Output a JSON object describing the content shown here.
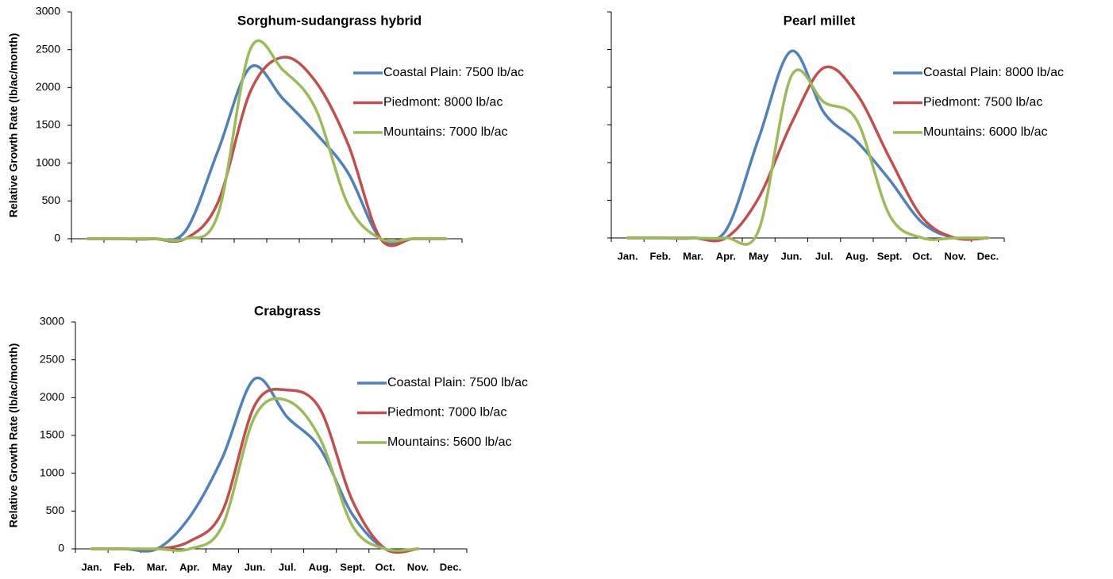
{
  "chart_data": [
    {
      "type": "line",
      "title": "Sorghum-sudangrass hybrid",
      "ylabel": "Relative Growth Rate (lb/ac/month)",
      "categories": [
        null,
        null,
        null,
        null,
        null,
        null,
        null,
        null,
        null,
        null,
        null,
        null
      ],
      "series": [
        {
          "name": "Coastal Plain: 7500 lb/ac",
          "color": "#4f81bd",
          "values": [
            0,
            0,
            0,
            100,
            1160,
            2270,
            1850,
            1400,
            870,
            0,
            0,
            0
          ]
        },
        {
          "name": "Piedmont: 8000 lb/ac",
          "color": "#c0504d",
          "values": [
            0,
            0,
            0,
            0,
            480,
            1950,
            2400,
            2080,
            1250,
            0,
            0,
            0
          ]
        },
        {
          "name": "Mountains: 7000 lb/ac",
          "color": "#9bbb59",
          "values": [
            0,
            0,
            0,
            0,
            320,
            2510,
            2230,
            1720,
            450,
            0,
            0,
            0
          ]
        }
      ],
      "ylim": [
        0,
        3000
      ],
      "yticks": [
        0,
        500,
        1000,
        1500,
        2000,
        2500,
        3000
      ],
      "ytick_labels": true
    },
    {
      "type": "line",
      "title": "Pearl millet",
      "categories": [
        "Jan.",
        "Feb.",
        "Mar.",
        "Apr.",
        "May",
        "Jun.",
        "Jul.",
        "Aug.",
        "Sept.",
        "Oct.",
        "Nov.",
        "Dec."
      ],
      "series": [
        {
          "name": "Coastal Plain: 8000 lb/ac",
          "color": "#4f81bd",
          "values": [
            0,
            0,
            0,
            100,
            1320,
            2480,
            1660,
            1280,
            770,
            200,
            0,
            0
          ]
        },
        {
          "name": "Piedmont: 7500 lb/ac",
          "color": "#c0504d",
          "values": [
            0,
            0,
            0,
            0,
            530,
            1520,
            2260,
            1910,
            1060,
            270,
            0,
            0
          ]
        },
        {
          "name": "Mountains: 6000 lb/ac",
          "color": "#9bbb59",
          "values": [
            0,
            0,
            0,
            0,
            100,
            2150,
            1800,
            1560,
            300,
            0,
            0,
            0
          ]
        }
      ],
      "ylim": [
        0,
        3000
      ],
      "yticks": [
        0,
        500,
        1000,
        1500,
        2000,
        2500,
        3000
      ],
      "ytick_labels": false
    },
    {
      "type": "line",
      "title": "Crabgrass",
      "ylabel": "Relative Growth Rate (lb/ac/month)",
      "categories": [
        "Jan.",
        "Feb.",
        "Mar.",
        "Apr.",
        "May",
        "Jun.",
        "Jul.",
        "Aug.",
        "Sept.",
        "Oct.",
        "Nov.",
        "Dec."
      ],
      "series": [
        {
          "name": "Coastal Plain: 7500 lb/ac",
          "color": "#4f81bd",
          "values": [
            0,
            0,
            0,
            420,
            1200,
            2250,
            1740,
            1330,
            450,
            0,
            0,
            null
          ]
        },
        {
          "name": "Piedmont: 7000 lb/ac",
          "color": "#c0504d",
          "values": [
            0,
            0,
            0,
            100,
            490,
            1900,
            2100,
            1850,
            630,
            0,
            0,
            null
          ]
        },
        {
          "name": "Mountains: 5600 lb/ac",
          "color": "#9bbb59",
          "values": [
            0,
            0,
            0,
            0,
            300,
            1750,
            1960,
            1460,
            300,
            0,
            0,
            null
          ]
        }
      ],
      "ylim": [
        0,
        3000
      ],
      "yticks": [
        0,
        500,
        1000,
        1500,
        2000,
        2500,
        3000
      ],
      "ytick_labels": true
    }
  ]
}
